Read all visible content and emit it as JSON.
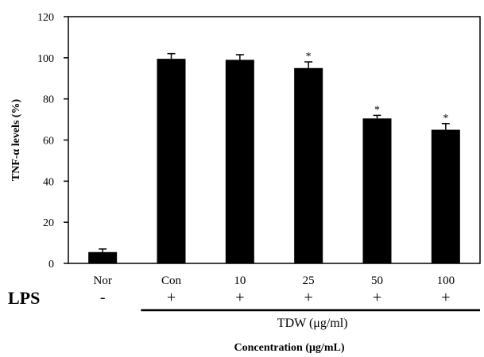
{
  "chart_data": {
    "type": "bar",
    "categories": [
      "Nor",
      "Con",
      "10",
      "25",
      "50",
      "100"
    ],
    "values": [
      5.5,
      99.5,
      99,
      95,
      70.5,
      65
    ],
    "errors": [
      1.5,
      2.5,
      2.5,
      3,
      1.5,
      3
    ],
    "significant": [
      false,
      false,
      false,
      true,
      true,
      true
    ],
    "significance_mark": "*",
    "ylabel": "TNF-α levels (%)",
    "xlabel": "Concentration (μg/mL)",
    "ylim": [
      0,
      120
    ],
    "yticks": [
      0,
      20,
      40,
      60,
      80,
      100,
      120
    ],
    "grid": false,
    "bar_color": "#000000",
    "lps_label": "LPS",
    "lps_signs": [
      "-",
      "+",
      "+",
      "+",
      "+",
      "+"
    ],
    "group_label": "TDW (μg/ml)"
  }
}
